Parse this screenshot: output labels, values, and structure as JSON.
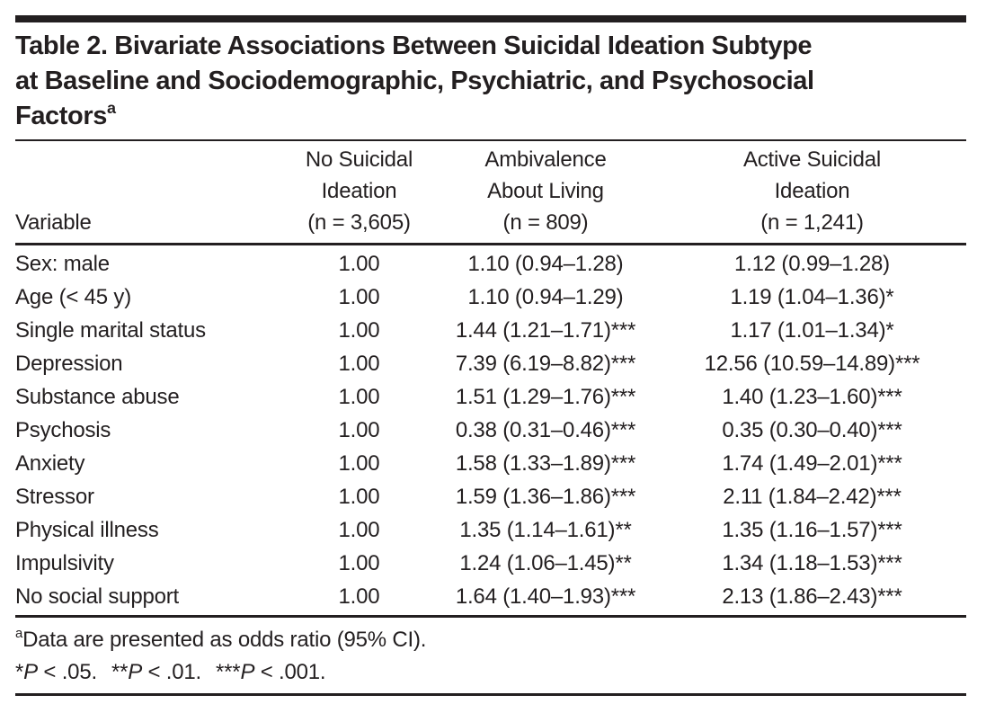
{
  "page": {
    "background": "#ffffff",
    "text_color": "#231f20",
    "rule_color": "#231f20"
  },
  "table": {
    "title_lines": [
      "Table 2. Bivariate Associations Between Suicidal Ideation Subtype",
      "at Baseline and Sociodemographic, Psychiatric, and Psychosocial",
      "Factors"
    ],
    "title_superscript": "a",
    "header": {
      "variable": "Variable",
      "groups": [
        {
          "lines": [
            "No Suicidal",
            "Ideation",
            "(n = 3,605)"
          ]
        },
        {
          "lines": [
            "Ambivalence",
            "About Living",
            "(n = 809)"
          ]
        },
        {
          "lines": [
            "Active Suicidal",
            "Ideation",
            "(n = 1,241)"
          ]
        }
      ]
    },
    "rows": [
      [
        "Sex: male",
        "1.00",
        "1.10 (0.94–1.28)",
        "1.12 (0.99–1.28)"
      ],
      [
        "Age (< 45 y)",
        "1.00",
        "1.10 (0.94–1.29)",
        "1.19 (1.04–1.36)*"
      ],
      [
        "Single marital status",
        "1.00",
        "1.44 (1.21–1.71)***",
        "1.17 (1.01–1.34)*"
      ],
      [
        "Depression",
        "1.00",
        "7.39 (6.19–8.82)***",
        "12.56 (10.59–14.89)***"
      ],
      [
        "Substance abuse",
        "1.00",
        "1.51 (1.29–1.76)***",
        "1.40 (1.23–1.60)***"
      ],
      [
        "Psychosis",
        "1.00",
        "0.38 (0.31–0.46)***",
        "0.35 (0.30–0.40)***"
      ],
      [
        "Anxiety",
        "1.00",
        "1.58 (1.33–1.89)***",
        "1.74 (1.49–2.01)***"
      ],
      [
        "Stressor",
        "1.00",
        "1.59 (1.36–1.86)***",
        "2.11 (1.84–2.42)***"
      ],
      [
        "Physical illness",
        "1.00",
        "1.35 (1.14–1.61)**",
        "1.35 (1.16–1.57)***"
      ],
      [
        "Impulsivity",
        "1.00",
        "1.24 (1.06–1.45)**",
        "1.34 (1.18–1.53)***"
      ],
      [
        "No social support",
        "1.00",
        "1.64 (1.40–1.93)***",
        "2.13 (1.86–2.43)***"
      ]
    ],
    "footnotes": {
      "a": {
        "marker": "a",
        "text": "Data are presented as odds ratio (95% CI)."
      },
      "significance": [
        {
          "stars": "*",
          "p": "P",
          "condition": " < .05."
        },
        {
          "stars": "**",
          "p": "P",
          "condition": " < .01."
        },
        {
          "stars": "***",
          "p": "P",
          "condition": " < .001."
        }
      ]
    }
  }
}
